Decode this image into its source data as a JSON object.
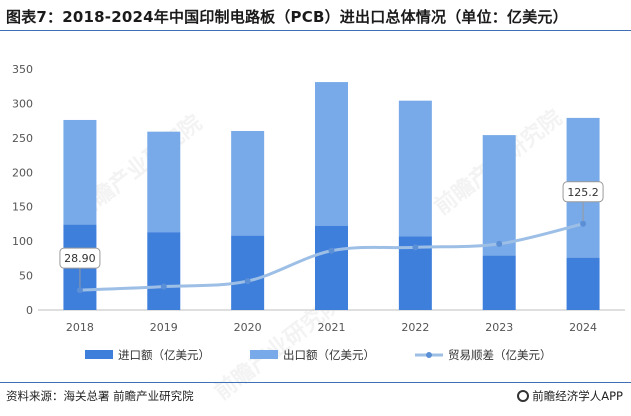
{
  "title": "图表7：2018-2024年中国印制电路板（PCB）进出口总体情况（单位：亿美元）",
  "source": "资料来源：海关总署 前瞻产业研究院",
  "brand": "前瞻经济学人APP",
  "watermark": "前瞻产业研究院",
  "colors": {
    "import": "#3f7fdc",
    "export": "#78a9e8",
    "balance": "#9dbfe6",
    "rule": "#3f6fb5"
  },
  "chart_data": {
    "type": "bar",
    "stacked": true,
    "categories": [
      "2018",
      "2019",
      "2020",
      "2021",
      "2022",
      "2023",
      "2024"
    ],
    "ylim": [
      0,
      350
    ],
    "yticks": [
      "0",
      "50",
      "100",
      "150",
      "200",
      "250",
      "300",
      "350"
    ],
    "grid": false,
    "legend_position": "bottom",
    "series": [
      {
        "name": "进口额（亿美元）",
        "kind": "bar",
        "values": [
          124,
          113,
          108,
          122,
          107,
          79,
          76
        ]
      },
      {
        "name": "出口额（亿美元）",
        "kind": "bar",
        "values": [
          152,
          146,
          152,
          209,
          197,
          175,
          203
        ]
      },
      {
        "name": "贸易顺差（亿美元）",
        "kind": "line",
        "values": [
          28.9,
          34,
          42,
          86,
          91,
          96,
          125.2
        ]
      }
    ],
    "annotations": [
      {
        "series": "贸易顺差（亿美元）",
        "category": "2018",
        "text": "28.90"
      },
      {
        "series": "贸易顺差（亿美元）",
        "category": "2024",
        "text": "125.2"
      }
    ]
  }
}
